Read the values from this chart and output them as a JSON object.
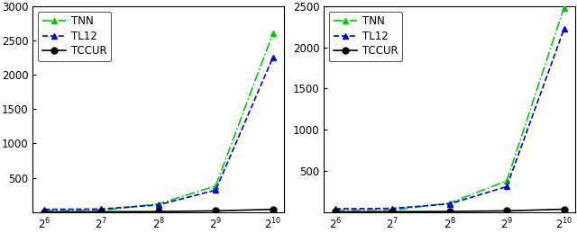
{
  "x_values": [
    64,
    128,
    256,
    512,
    1024
  ],
  "x_labels": [
    "$2^6$",
    "$2^7$",
    "$2^8$",
    "$2^9$",
    "$2^{10}$"
  ],
  "left": {
    "TNN": [
      20,
      25,
      120,
      380,
      2600
    ],
    "TL12": [
      40,
      45,
      105,
      320,
      2250
    ],
    "TCCUR": [
      3,
      5,
      8,
      18,
      40
    ],
    "ylim": [
      0,
      3000
    ],
    "yticks": [
      0,
      500,
      1000,
      1500,
      2000,
      2500,
      3000
    ]
  },
  "right": {
    "TNN": [
      20,
      25,
      110,
      380,
      2480
    ],
    "TL12": [
      40,
      45,
      100,
      310,
      2220
    ],
    "TCCUR": [
      3,
      5,
      8,
      15,
      35
    ],
    "ylim": [
      0,
      2500
    ],
    "yticks": [
      0,
      500,
      1000,
      1500,
      2000,
      2500
    ]
  },
  "TNN_color": "#00cc00",
  "TL12_color": "#0000ee",
  "TCCUR_color": "#000000",
  "TNN_linestyle": "-.",
  "TL12_linestyle": "--",
  "TCCUR_linestyle": "-",
  "marker_triangle": "^",
  "marker_circle": "o",
  "linewidth": 1.2,
  "markersize": 5,
  "legend_fontsize": 8.5,
  "tick_fontsize": 8.5
}
